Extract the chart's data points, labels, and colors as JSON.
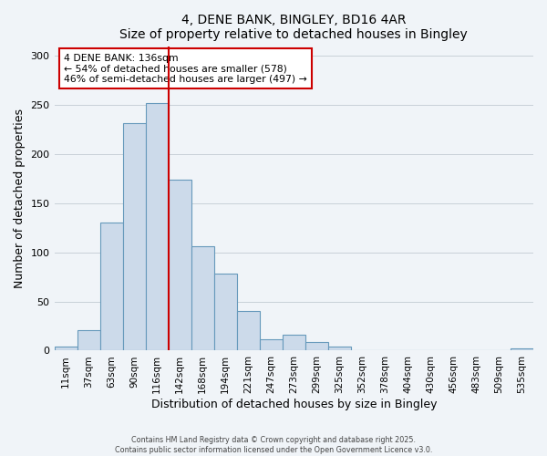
{
  "title": "4, DENE BANK, BINGLEY, BD16 4AR",
  "subtitle": "Size of property relative to detached houses in Bingley",
  "xlabel": "Distribution of detached houses by size in Bingley",
  "ylabel": "Number of detached properties",
  "bin_labels": [
    "11sqm",
    "37sqm",
    "63sqm",
    "90sqm",
    "116sqm",
    "142sqm",
    "168sqm",
    "194sqm",
    "221sqm",
    "247sqm",
    "273sqm",
    "299sqm",
    "325sqm",
    "352sqm",
    "378sqm",
    "404sqm",
    "430sqm",
    "456sqm",
    "483sqm",
    "509sqm",
    "535sqm"
  ],
  "bar_heights": [
    4,
    21,
    130,
    232,
    252,
    174,
    106,
    78,
    40,
    12,
    16,
    9,
    4,
    0,
    0,
    0,
    0,
    0,
    0,
    0,
    2
  ],
  "bar_color": "#ccdaea",
  "bar_edge_color": "#6699bb",
  "vline_position": 4.5,
  "vline_color": "#cc0000",
  "annotation_title": "4 DENE BANK: 136sqm",
  "annotation_line1": "← 54% of detached houses are smaller (578)",
  "annotation_line2": "46% of semi-detached houses are larger (497) →",
  "annotation_box_color": "#ffffff",
  "annotation_box_edge_color": "#cc0000",
  "ylim": [
    0,
    310
  ],
  "yticks": [
    0,
    50,
    100,
    150,
    200,
    250,
    300
  ],
  "footer1": "Contains HM Land Registry data © Crown copyright and database right 2025.",
  "footer2": "Contains public sector information licensed under the Open Government Licence v3.0.",
  "bg_color": "#f0f4f8"
}
